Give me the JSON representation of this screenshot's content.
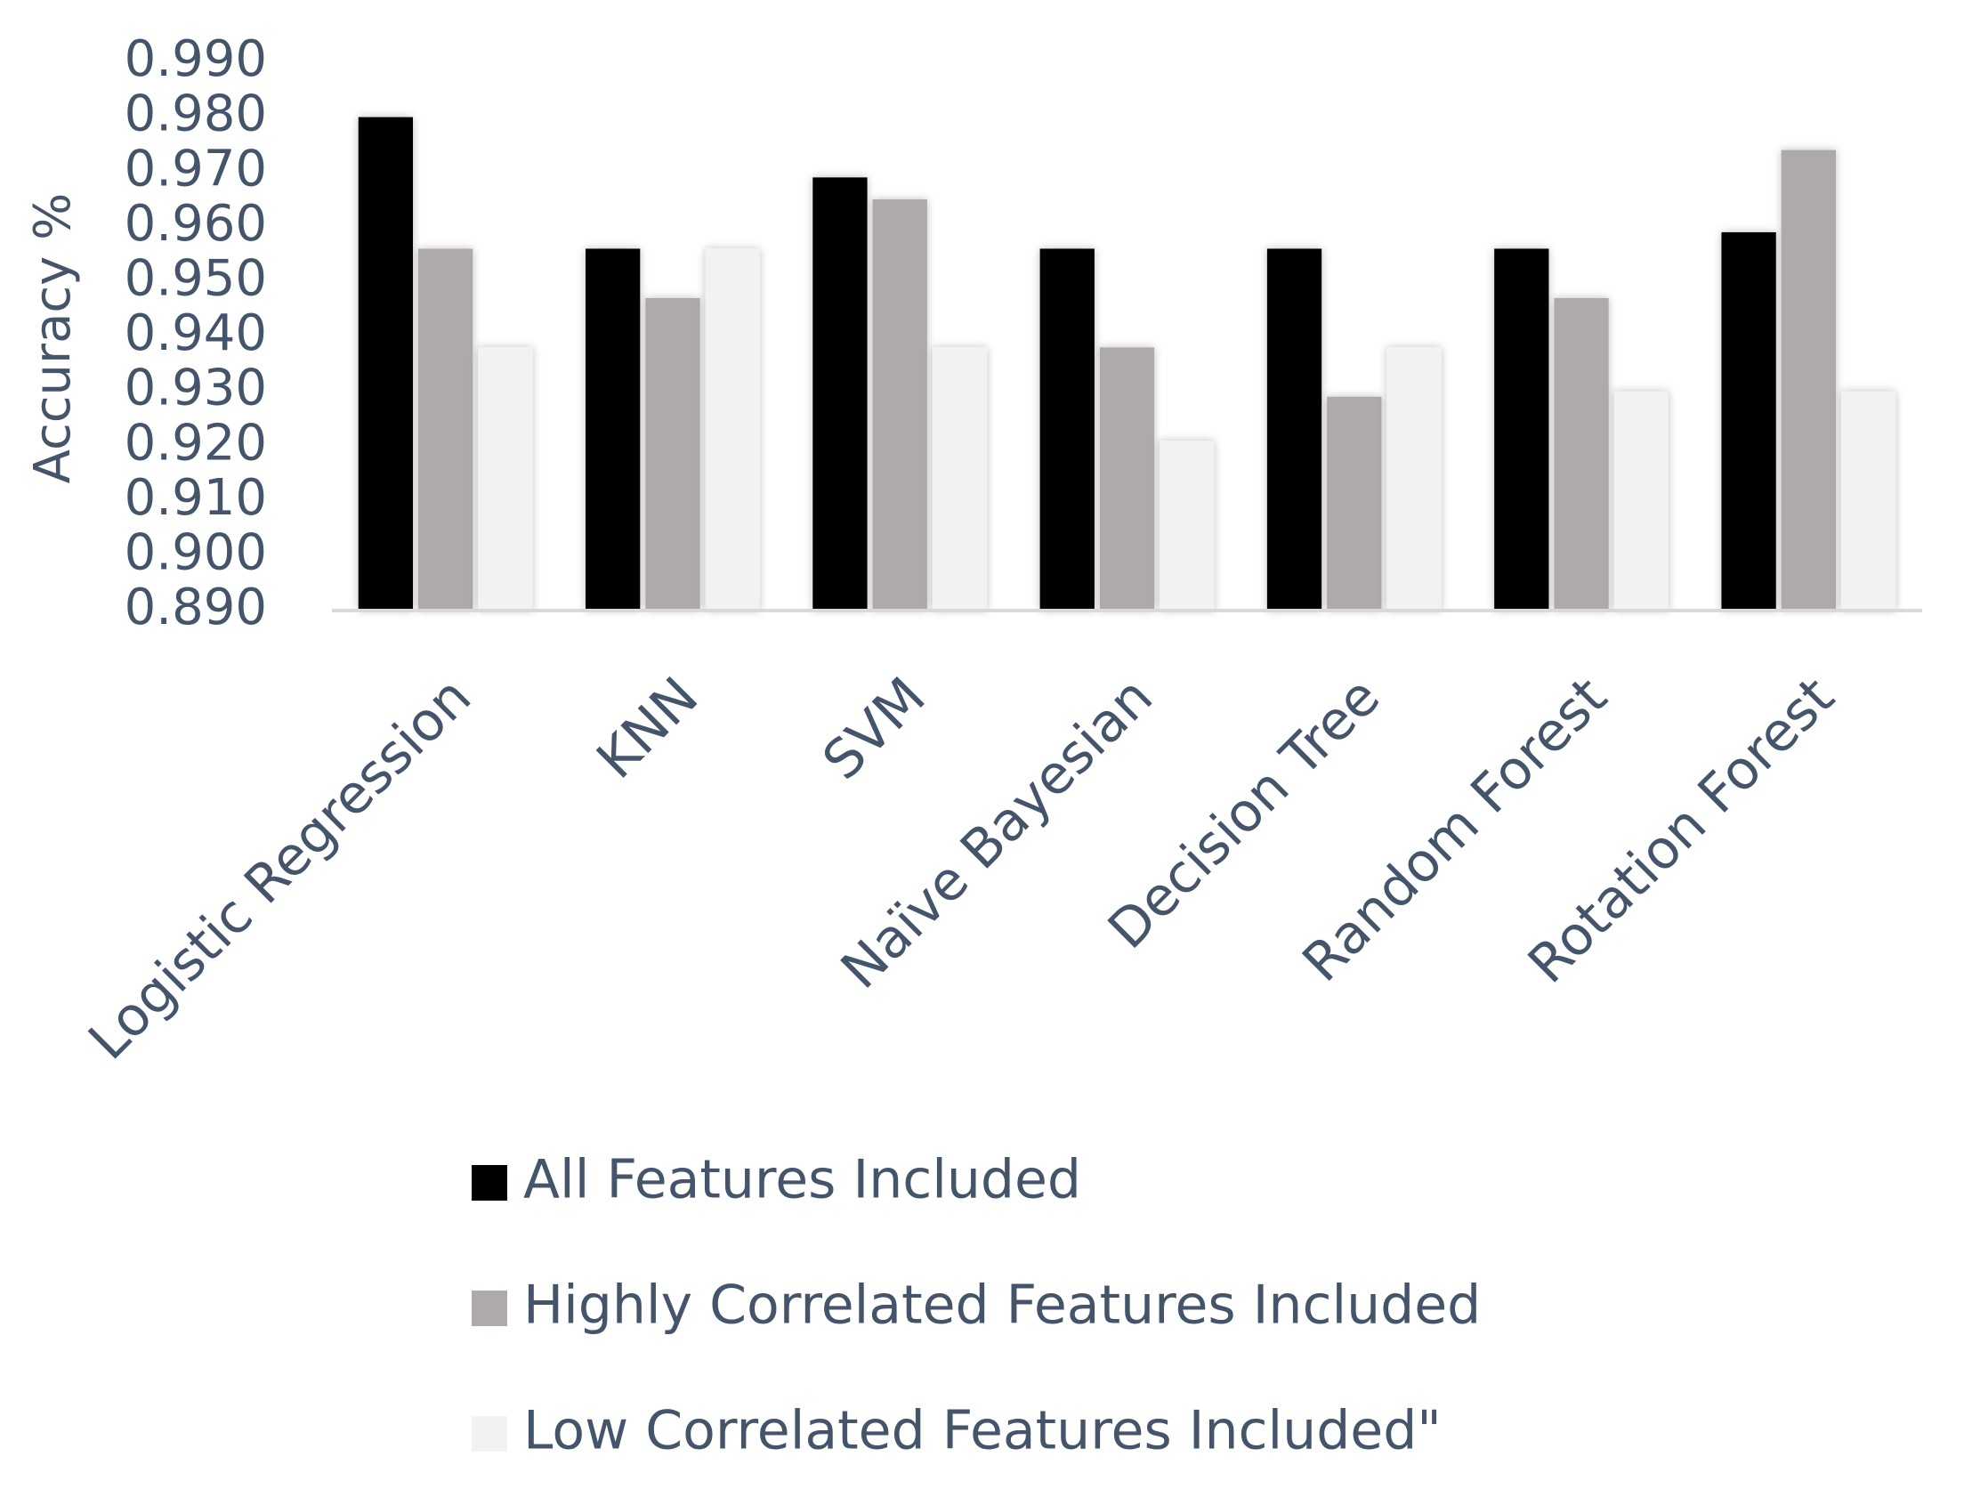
{
  "chart_data": {
    "type": "bar",
    "y_label": "Accuracy %",
    "categories": [
      "Logistic Regression",
      "KNN",
      "SVM",
      "Naïve Bayesian",
      "Decision Tree",
      "Random Forest",
      "Rotation Forest"
    ],
    "series": [
      {
        "name": "All Features Included",
        "color": "#000000",
        "values": [
          0.98,
          0.956,
          0.969,
          0.956,
          0.956,
          0.956,
          0.959
        ]
      },
      {
        "name": "Highly Correlated Features Included",
        "color": "#aeaaaa",
        "values": [
          0.956,
          0.947,
          0.965,
          0.938,
          0.929,
          0.947,
          0.974
        ]
      },
      {
        "name": "Low Correlated Features Included\"",
        "color": "#f2f2f2",
        "values": [
          0.938,
          0.956,
          0.938,
          0.921,
          0.938,
          0.93,
          0.93
        ]
      }
    ],
    "ylim": [
      0.89,
      0.99
    ],
    "yticks": [
      {
        "value": 0.89,
        "label": "0.890"
      },
      {
        "value": 0.9,
        "label": "0.900"
      },
      {
        "value": 0.91,
        "label": "0.910"
      },
      {
        "value": 0.92,
        "label": "0.920"
      },
      {
        "value": 0.93,
        "label": "0.930"
      },
      {
        "value": 0.94,
        "label": "0.940"
      },
      {
        "value": 0.95,
        "label": "0.950"
      },
      {
        "value": 0.96,
        "label": "0.960"
      },
      {
        "value": 0.97,
        "label": "0.970"
      },
      {
        "value": 0.98,
        "label": "0.980"
      },
      {
        "value": 0.99,
        "label": "0.990"
      }
    ],
    "grid": false,
    "legend": "bottom"
  }
}
